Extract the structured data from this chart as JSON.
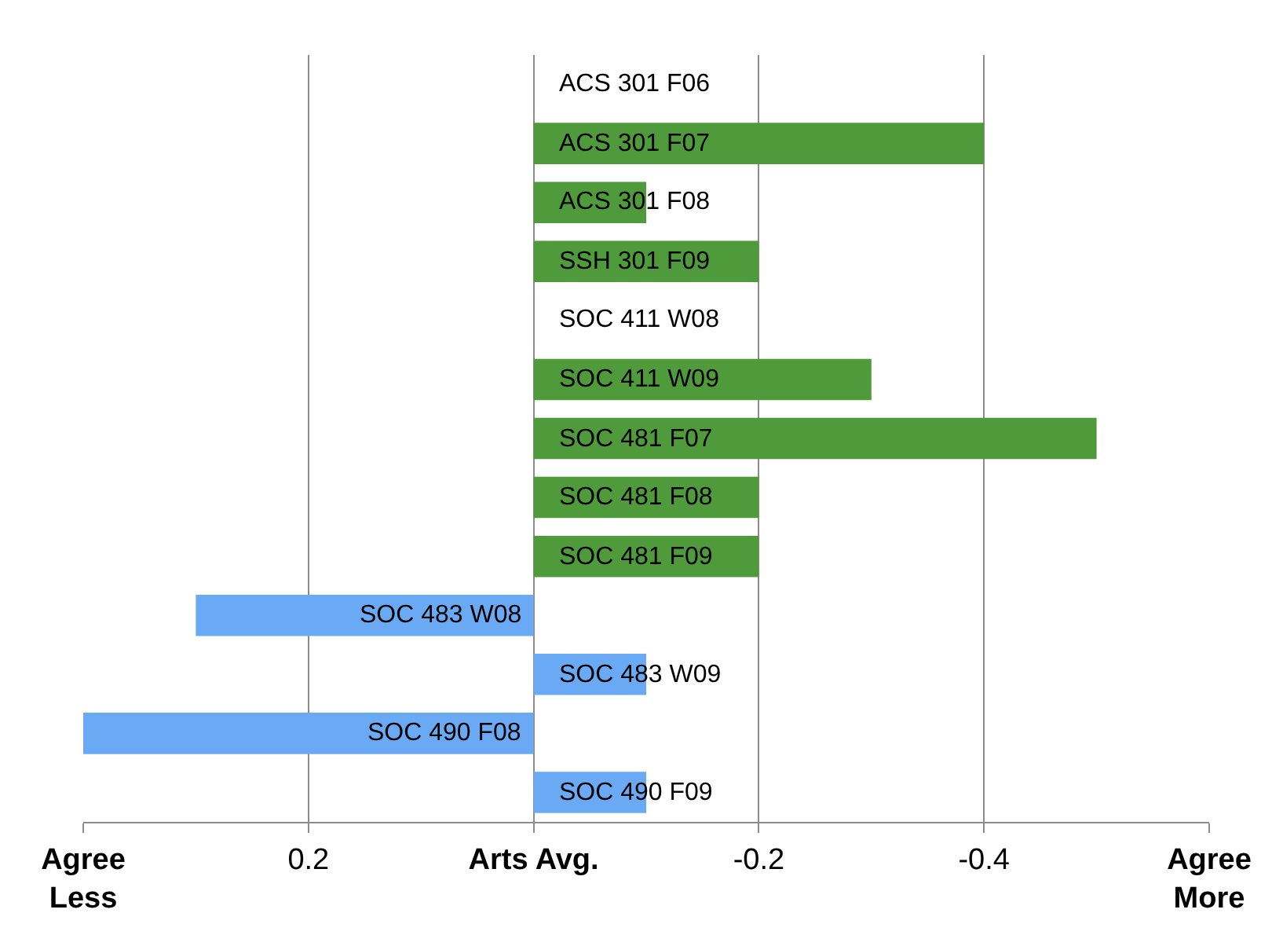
{
  "chart_data": {
    "type": "bar",
    "orientation": "horizontal",
    "categories": [
      "ACS 301 F06",
      "ACS 301 F07",
      "ACS 301 F08",
      "SSH 301 F09",
      "SOC 411 W08",
      "SOC 411 W09",
      "SOC 481 F07",
      "SOC 481 F08",
      "SOC 481 F09",
      "SOC 483 W08",
      "SOC 483 W09",
      "SOC 490 F08",
      "SOC 490 F09"
    ],
    "values": [
      0,
      -0.4,
      -0.1,
      -0.2,
      0,
      -0.3,
      -0.5,
      -0.2,
      -0.2,
      0.3,
      -0.1,
      0.4,
      -0.1
    ],
    "colors": [
      "#4f9a3a",
      "#4f9a3a",
      "#4f9a3a",
      "#4f9a3a",
      "#4f9a3a",
      "#4f9a3a",
      "#4f9a3a",
      "#4f9a3a",
      "#4f9a3a",
      "#6aaaf5",
      "#6aaaf5",
      "#6aaaf5",
      "#6aaaf5"
    ],
    "xlim": [
      0.4,
      -0.6
    ],
    "xticks": [
      {
        "value": 0.4,
        "label": "Agree\nLess"
      },
      0.2,
      {
        "value": 0,
        "label": "Arts Avg."
      },
      -0.2,
      -0.4,
      {
        "value": -0.6,
        "label": "Agree\nMore"
      }
    ],
    "grid": "x"
  }
}
